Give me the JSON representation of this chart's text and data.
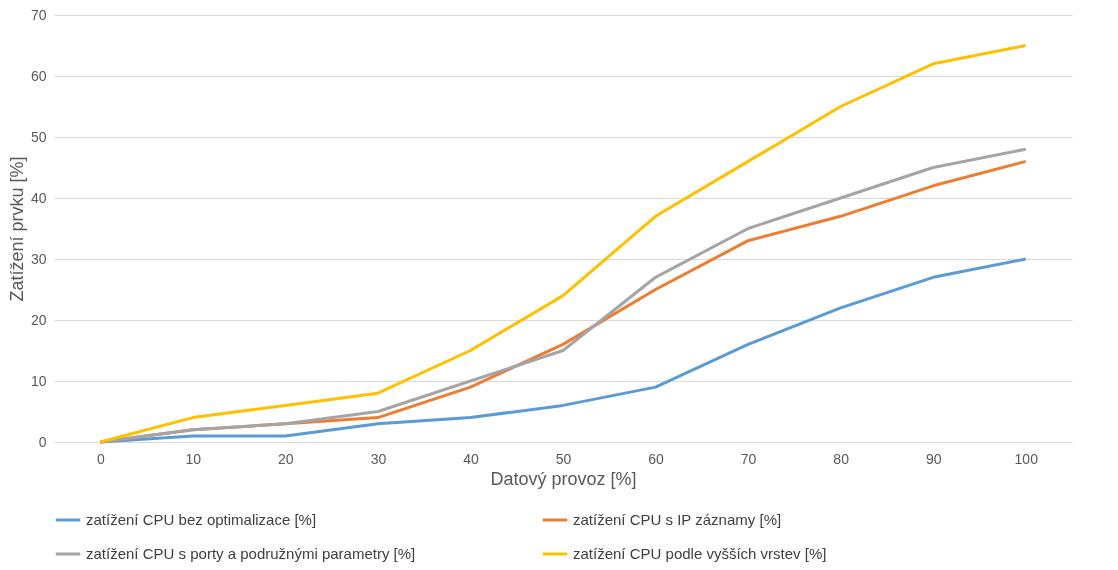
{
  "chart_data": {
    "type": "line",
    "xlabel": "Datový provoz [%]",
    "ylabel": "Zatížení prvku [%]",
    "categories": [
      "0",
      "10",
      "20",
      "30",
      "40",
      "50",
      "60",
      "70",
      "80",
      "90",
      "100"
    ],
    "series": [
      {
        "name": "zatížení CPU bez optimalizace [%]",
        "color": "#5b9bd5",
        "values": [
          0,
          1,
          1,
          3,
          4,
          6,
          9,
          16,
          22,
          27,
          30
        ]
      },
      {
        "name": "zatížení CPU s IP záznamy [%]",
        "color": "#ed7d31",
        "values": [
          0,
          2,
          3,
          4,
          9,
          16,
          25,
          33,
          37,
          42,
          46
        ]
      },
      {
        "name": "zatížení CPU s porty a podružnými parametry [%]",
        "color": "#a5a5a5",
        "values": [
          0,
          2,
          3,
          5,
          10,
          15,
          27,
          35,
          40,
          45,
          48
        ]
      },
      {
        "name": "zatížení CPU podle vyšších vrstev [%]",
        "color": "#ffc000",
        "values": [
          0,
          4,
          6,
          8,
          15,
          24,
          37,
          46,
          55,
          62,
          65
        ]
      }
    ],
    "ylim": [
      0,
      70
    ],
    "yticks": [
      0,
      10,
      20,
      30,
      40,
      50,
      60,
      70
    ],
    "grid": "y",
    "legend": "bottom",
    "marker": "none",
    "line_style": "solid"
  }
}
